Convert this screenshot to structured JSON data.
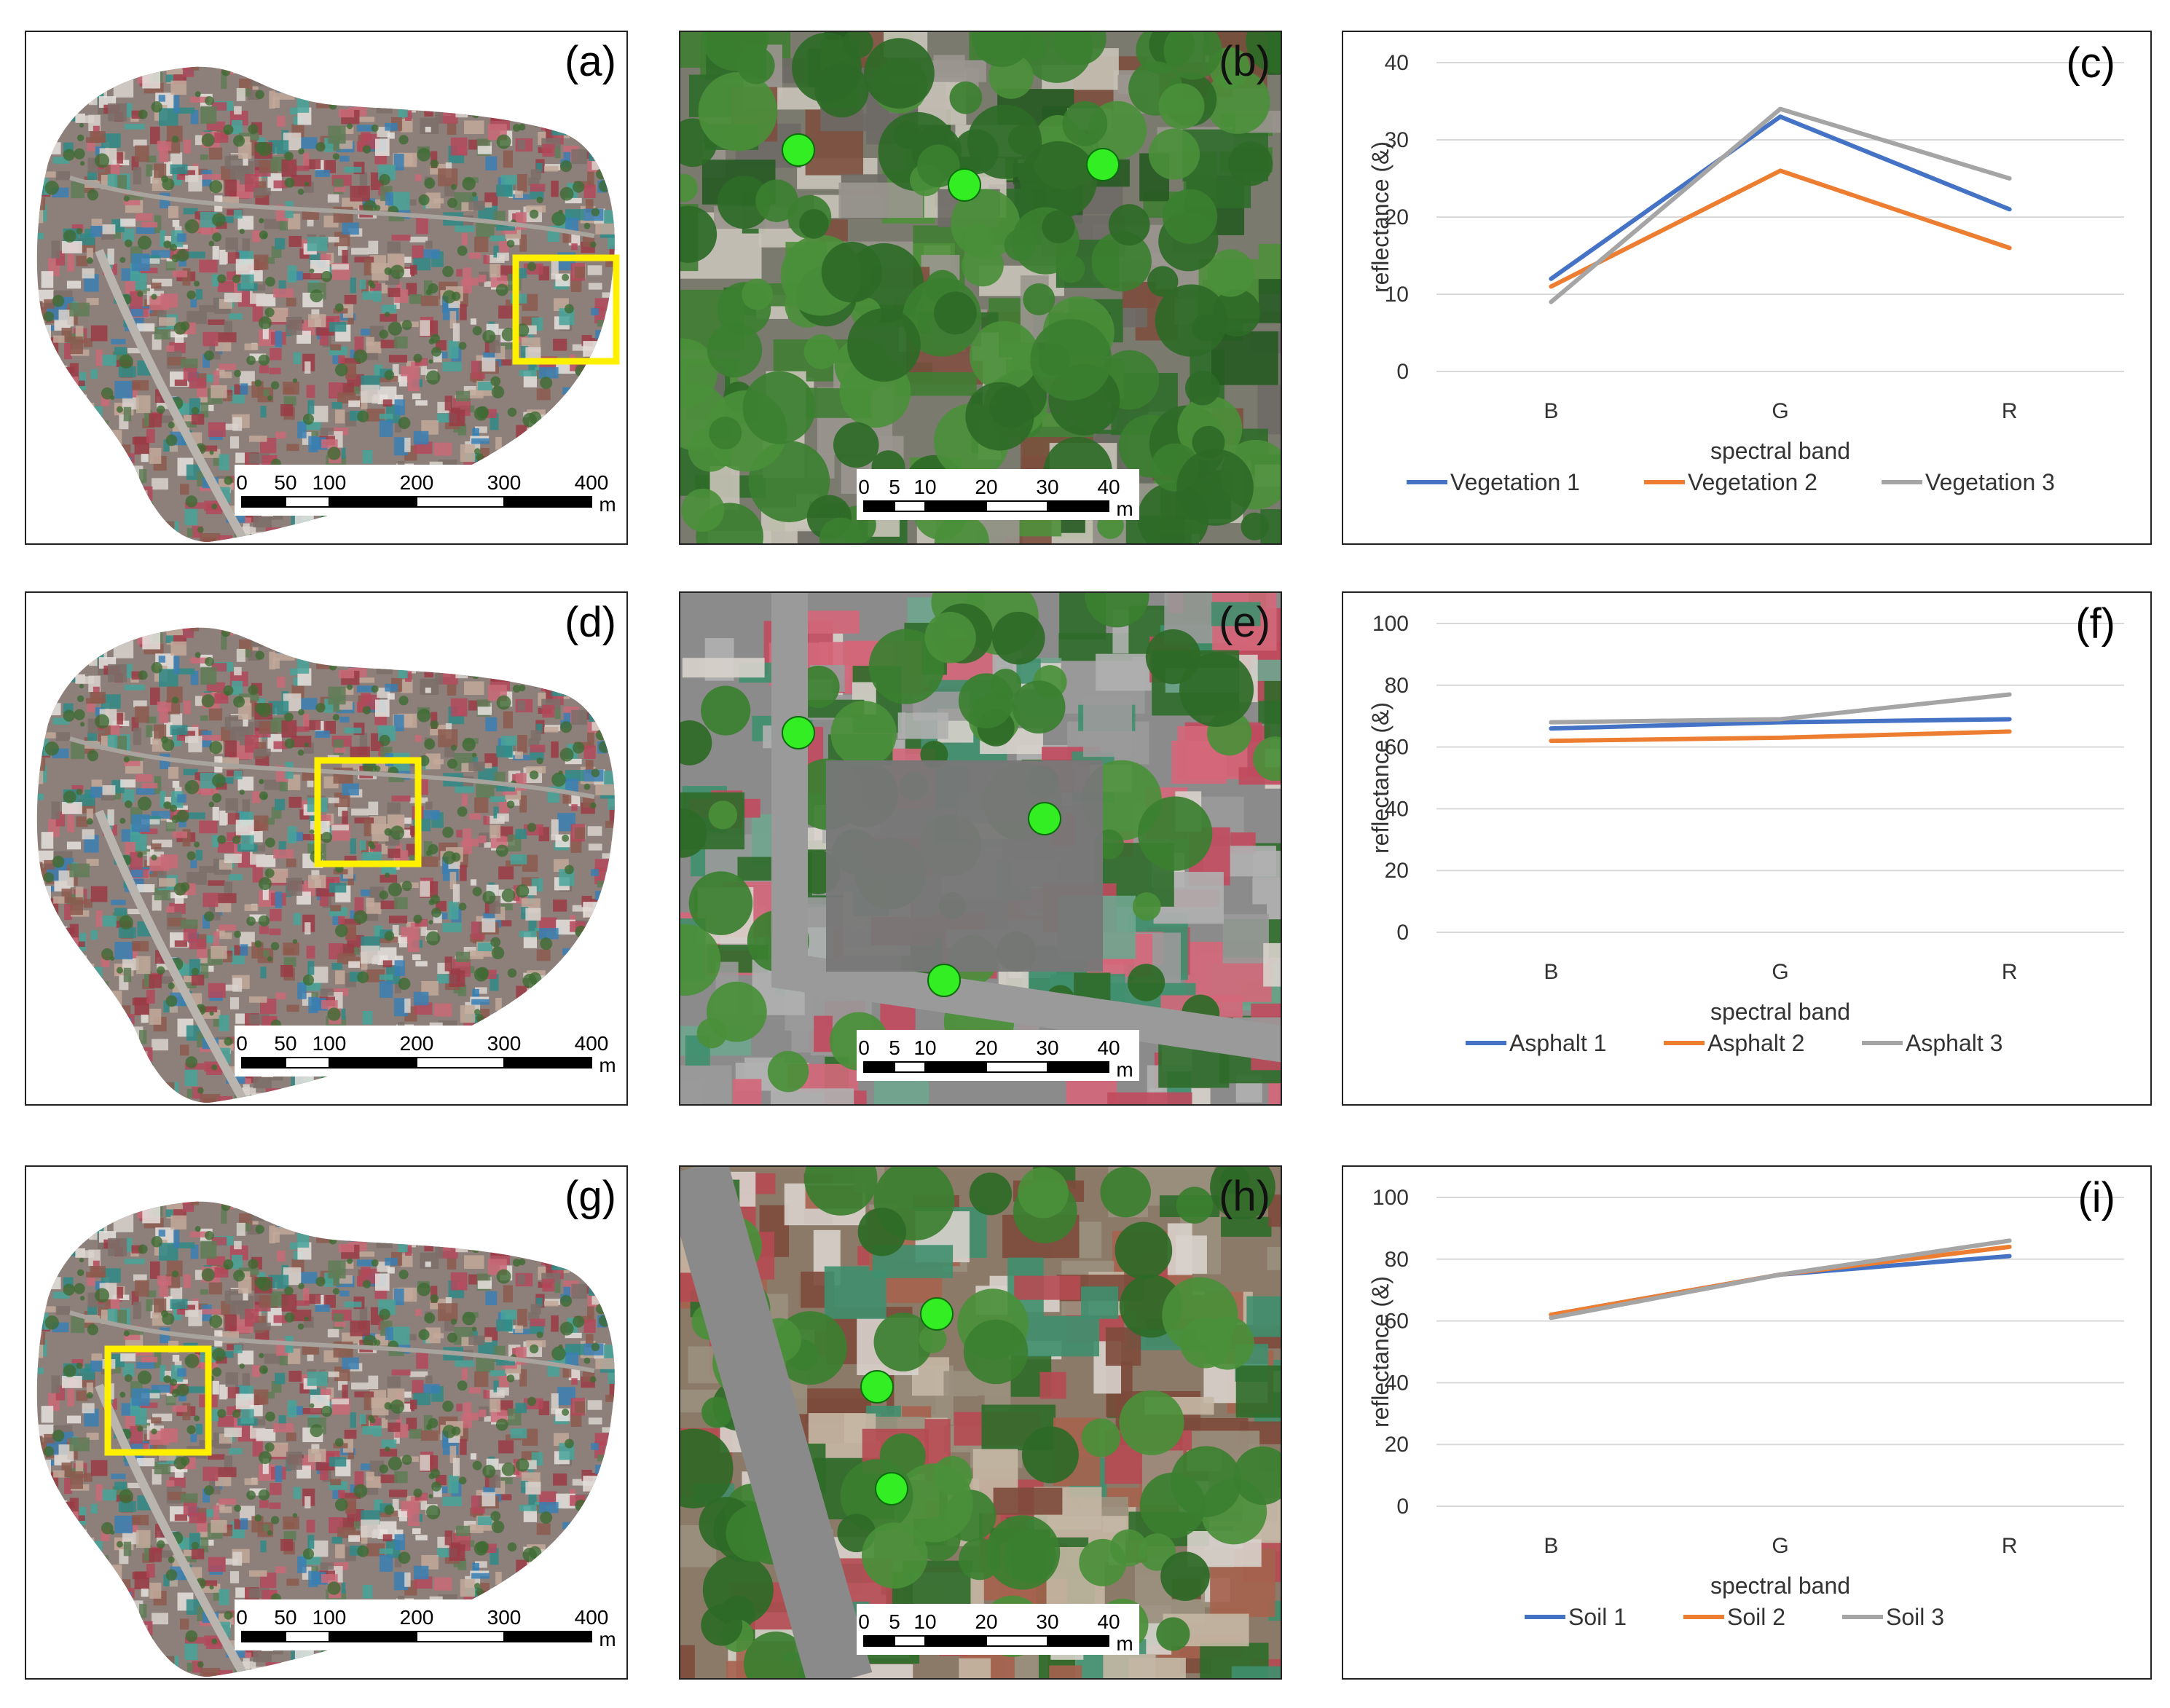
{
  "colors": {
    "series1": "#4472C4",
    "series2": "#ED7D31",
    "series3": "#A5A5A5",
    "highlight_box": "#FFF000",
    "sample_point": "#33EE22",
    "grid": "#D9D9D9"
  },
  "map_rows": [
    {
      "overview": {
        "label": "(a)",
        "scale": {
          "ticks": [
            "0",
            "50",
            "100",
            "200",
            "300",
            "400"
          ],
          "unit": "m"
        }
      },
      "detail": {
        "label": "(b)",
        "scale": {
          "ticks": [
            "0",
            "5",
            "10",
            "20",
            "30",
            "40"
          ],
          "unit": "m"
        }
      }
    },
    {
      "overview": {
        "label": "(d)",
        "scale": {
          "ticks": [
            "0",
            "50",
            "100",
            "200",
            "300",
            "400"
          ],
          "unit": "m"
        }
      },
      "detail": {
        "label": "(e)",
        "scale": {
          "ticks": [
            "0",
            "5",
            "10",
            "20",
            "30",
            "40"
          ],
          "unit": "m"
        }
      }
    },
    {
      "overview": {
        "label": "(g)",
        "scale": {
          "ticks": [
            "0",
            "50",
            "100",
            "200",
            "300",
            "400"
          ],
          "unit": "m"
        }
      },
      "detail": {
        "label": "(h)",
        "scale": {
          "ticks": [
            "0",
            "5",
            "10",
            "20",
            "30",
            "40"
          ],
          "unit": "m"
        }
      }
    }
  ],
  "chart_data": [
    {
      "type": "line",
      "panel_label": "(c)",
      "categories": [
        "B",
        "G",
        "R"
      ],
      "xlabel": "spectral band",
      "ylabel": "reflectance (&)",
      "ylim": [
        0,
        40
      ],
      "yticks": [
        "0",
        "10",
        "20",
        "30",
        "40"
      ],
      "grid": true,
      "legend": "bottom",
      "series": [
        {
          "name": "Vegetation 1",
          "values": [
            12,
            33,
            21
          ]
        },
        {
          "name": "Vegetation 2",
          "values": [
            11,
            26,
            16
          ]
        },
        {
          "name": "Vegetation 3",
          "values": [
            9,
            34,
            25
          ]
        }
      ]
    },
    {
      "type": "line",
      "panel_label": "(f)",
      "categories": [
        "B",
        "G",
        "R"
      ],
      "xlabel": "spectral band",
      "ylabel": "reflectance (&)",
      "ylim": [
        0,
        100
      ],
      "yticks": [
        "0",
        "20",
        "40",
        "60",
        "80",
        "100"
      ],
      "grid": true,
      "legend": "bottom",
      "series": [
        {
          "name": "Asphalt 1",
          "values": [
            66,
            68,
            69
          ]
        },
        {
          "name": "Asphalt 2",
          "values": [
            62,
            63,
            65
          ]
        },
        {
          "name": "Asphalt 3",
          "values": [
            68,
            69,
            77
          ]
        }
      ]
    },
    {
      "type": "line",
      "panel_label": "(i)",
      "categories": [
        "B",
        "G",
        "R"
      ],
      "xlabel": "spectral band",
      "ylabel": "reflectance (&)",
      "ylim": [
        0,
        100
      ],
      "yticks": [
        "0",
        "20",
        "40",
        "60",
        "80",
        "100"
      ],
      "grid": true,
      "legend": "bottom",
      "series": [
        {
          "name": "Soil 1",
          "values": [
            62,
            75,
            81
          ]
        },
        {
          "name": "Soil 2",
          "values": [
            62,
            75,
            84
          ]
        },
        {
          "name": "Soil 3",
          "values": [
            61,
            75,
            86
          ]
        }
      ]
    }
  ]
}
